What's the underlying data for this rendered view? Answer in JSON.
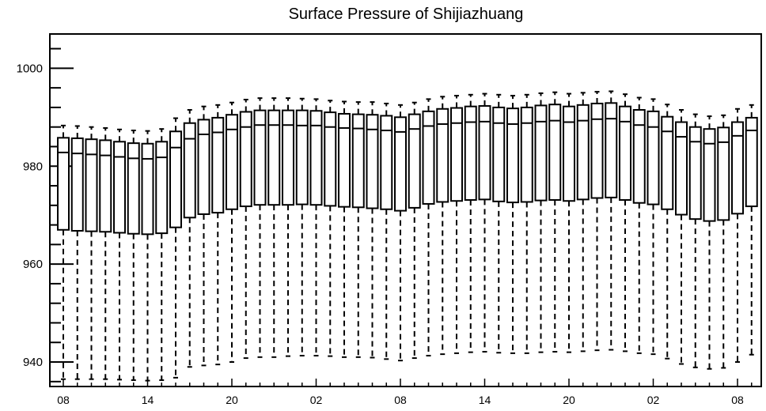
{
  "chart_data": {
    "type": "box",
    "title": "Surface Pressure of Shijiazhuang",
    "xlabel": "",
    "ylabel": "",
    "ylim": [
      935,
      1007
    ],
    "yticks": [
      940,
      960,
      980,
      1000
    ],
    "xtick_labels": [
      "08",
      "14",
      "20",
      "02",
      "08",
      "14",
      "20",
      "02",
      "08"
    ],
    "xtick_positions": [
      0,
      6,
      12,
      18,
      24,
      30,
      36,
      42,
      48
    ],
    "boxes": [
      {
        "x": 0,
        "whislo": 936.5,
        "q1": 967.0,
        "med": 982.8,
        "q3": 985.8,
        "whishi": 988.3
      },
      {
        "x": 1,
        "whislo": 936.5,
        "q1": 966.8,
        "med": 982.6,
        "q3": 985.7,
        "whishi": 988.2
      },
      {
        "x": 2,
        "whislo": 936.5,
        "q1": 966.7,
        "med": 982.4,
        "q3": 985.5,
        "whishi": 988.0
      },
      {
        "x": 3,
        "whislo": 936.5,
        "q1": 966.6,
        "med": 982.2,
        "q3": 985.3,
        "whishi": 987.8
      },
      {
        "x": 4,
        "whislo": 936.4,
        "q1": 966.4,
        "med": 981.9,
        "q3": 985.0,
        "whishi": 987.5
      },
      {
        "x": 5,
        "whislo": 936.3,
        "q1": 966.2,
        "med": 981.6,
        "q3": 984.7,
        "whishi": 987.3
      },
      {
        "x": 6,
        "whislo": 936.2,
        "q1": 966.1,
        "med": 981.5,
        "q3": 984.6,
        "whishi": 987.2
      },
      {
        "x": 7,
        "whislo": 936.3,
        "q1": 966.3,
        "med": 981.8,
        "q3": 985.0,
        "whishi": 987.6
      },
      {
        "x": 8,
        "whislo": 936.8,
        "q1": 967.5,
        "med": 983.8,
        "q3": 987.1,
        "whishi": 989.8
      },
      {
        "x": 9,
        "whislo": 939.0,
        "q1": 969.5,
        "med": 985.6,
        "q3": 988.8,
        "whishi": 991.5
      },
      {
        "x": 10,
        "whislo": 939.3,
        "q1": 970.2,
        "med": 986.5,
        "q3": 989.5,
        "whishi": 992.2
      },
      {
        "x": 11,
        "whislo": 939.5,
        "q1": 970.5,
        "med": 986.9,
        "q3": 989.9,
        "whishi": 992.5
      },
      {
        "x": 12,
        "whislo": 940.0,
        "q1": 971.2,
        "med": 987.5,
        "q3": 990.5,
        "whishi": 993.0
      },
      {
        "x": 13,
        "whislo": 940.8,
        "q1": 971.8,
        "med": 988.0,
        "q3": 991.1,
        "whishi": 993.6
      },
      {
        "x": 14,
        "whislo": 941.0,
        "q1": 972.1,
        "med": 988.4,
        "q3": 991.4,
        "whishi": 993.9
      },
      {
        "x": 15,
        "whislo": 941.0,
        "q1": 972.1,
        "med": 988.4,
        "q3": 991.4,
        "whishi": 993.9
      },
      {
        "x": 16,
        "whislo": 941.2,
        "q1": 972.1,
        "med": 988.4,
        "q3": 991.4,
        "whishi": 993.9
      },
      {
        "x": 17,
        "whislo": 941.3,
        "q1": 972.2,
        "med": 988.3,
        "q3": 991.4,
        "whishi": 993.8
      },
      {
        "x": 18,
        "whislo": 941.3,
        "q1": 972.1,
        "med": 988.3,
        "q3": 991.3,
        "whishi": 993.7
      },
      {
        "x": 19,
        "whislo": 941.2,
        "q1": 971.9,
        "med": 988.0,
        "q3": 991.0,
        "whishi": 993.4
      },
      {
        "x": 20,
        "whislo": 941.0,
        "q1": 971.7,
        "med": 987.8,
        "q3": 990.7,
        "whishi": 993.2
      },
      {
        "x": 21,
        "whislo": 941.0,
        "q1": 971.6,
        "med": 987.7,
        "q3": 990.6,
        "whishi": 993.1
      },
      {
        "x": 22,
        "whislo": 940.9,
        "q1": 971.4,
        "med": 987.5,
        "q3": 990.5,
        "whishi": 993.1
      },
      {
        "x": 23,
        "whislo": 940.6,
        "q1": 971.2,
        "med": 987.3,
        "q3": 990.3,
        "whishi": 992.8
      },
      {
        "x": 24,
        "whislo": 940.3,
        "q1": 970.9,
        "med": 987.0,
        "q3": 990.0,
        "whishi": 992.5
      },
      {
        "x": 25,
        "whislo": 940.8,
        "q1": 971.5,
        "med": 987.6,
        "q3": 990.6,
        "whishi": 993.0
      },
      {
        "x": 26,
        "whislo": 941.3,
        "q1": 972.3,
        "med": 988.2,
        "q3": 991.2,
        "whishi": 993.7
      },
      {
        "x": 27,
        "whislo": 941.6,
        "q1": 972.7,
        "med": 988.6,
        "q3": 991.7,
        "whishi": 994.2
      },
      {
        "x": 28,
        "whislo": 941.8,
        "q1": 972.9,
        "med": 988.8,
        "q3": 991.9,
        "whishi": 994.4
      },
      {
        "x": 29,
        "whislo": 942.0,
        "q1": 973.1,
        "med": 989.0,
        "q3": 992.2,
        "whishi": 994.6
      },
      {
        "x": 30,
        "whislo": 942.1,
        "q1": 973.2,
        "med": 989.1,
        "q3": 992.3,
        "whishi": 994.8
      },
      {
        "x": 31,
        "whislo": 941.9,
        "q1": 972.8,
        "med": 988.8,
        "q3": 992.0,
        "whishi": 994.6
      },
      {
        "x": 32,
        "whislo": 941.8,
        "q1": 972.6,
        "med": 988.6,
        "q3": 991.8,
        "whishi": 994.4
      },
      {
        "x": 33,
        "whislo": 941.8,
        "q1": 972.7,
        "med": 988.8,
        "q3": 992.0,
        "whishi": 994.6
      },
      {
        "x": 34,
        "whislo": 942.0,
        "q1": 973.0,
        "med": 989.1,
        "q3": 992.4,
        "whishi": 994.9
      },
      {
        "x": 35,
        "whislo": 942.1,
        "q1": 973.1,
        "med": 989.3,
        "q3": 992.6,
        "whishi": 995.1
      },
      {
        "x": 36,
        "whislo": 942.0,
        "q1": 972.9,
        "med": 989.0,
        "q3": 992.2,
        "whishi": 994.8
      },
      {
        "x": 37,
        "whislo": 942.2,
        "q1": 973.2,
        "med": 989.3,
        "q3": 992.5,
        "whishi": 995.0
      },
      {
        "x": 38,
        "whislo": 942.4,
        "q1": 973.5,
        "med": 989.6,
        "q3": 992.8,
        "whishi": 995.2
      },
      {
        "x": 39,
        "whislo": 942.5,
        "q1": 973.6,
        "med": 989.7,
        "q3": 992.9,
        "whishi": 995.3
      },
      {
        "x": 40,
        "whislo": 942.2,
        "q1": 973.1,
        "med": 989.1,
        "q3": 992.2,
        "whishi": 994.7
      },
      {
        "x": 41,
        "whislo": 941.8,
        "q1": 972.5,
        "med": 988.4,
        "q3": 991.5,
        "whishi": 994.0
      },
      {
        "x": 42,
        "whislo": 941.6,
        "q1": 972.2,
        "med": 988.0,
        "q3": 991.2,
        "whishi": 993.7
      },
      {
        "x": 43,
        "whislo": 940.7,
        "q1": 971.2,
        "med": 987.1,
        "q3": 990.1,
        "whishi": 992.6
      },
      {
        "x": 44,
        "whislo": 939.6,
        "q1": 970.1,
        "med": 986.0,
        "q3": 989.0,
        "whishi": 991.5
      },
      {
        "x": 45,
        "whislo": 938.9,
        "q1": 969.2,
        "med": 985.0,
        "q3": 988.0,
        "whishi": 990.6
      },
      {
        "x": 46,
        "whislo": 938.6,
        "q1": 968.8,
        "med": 984.6,
        "q3": 987.6,
        "whishi": 990.2
      },
      {
        "x": 47,
        "whislo": 938.8,
        "q1": 969.0,
        "med": 984.9,
        "q3": 987.9,
        "whishi": 990.4
      },
      {
        "x": 48,
        "whislo": 940.0,
        "q1": 970.3,
        "med": 986.2,
        "q3": 989.0,
        "whishi": 991.7
      },
      {
        "x": 49,
        "whislo": 941.5,
        "q1": 971.8,
        "med": 987.3,
        "q3": 989.9,
        "whishi": 992.5
      }
    ],
    "grid": false
  }
}
